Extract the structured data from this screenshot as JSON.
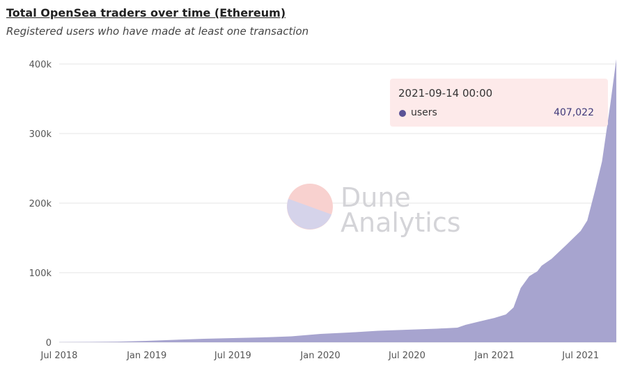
{
  "header": {
    "title": "Total OpenSea traders over time (Ethereum)",
    "subtitle": "Registered users who have made at least one transaction"
  },
  "watermark": {
    "line1": "Dune",
    "line2": "Analytics"
  },
  "tooltip": {
    "date": "2021-09-14 00:00",
    "series_name": "users",
    "value": "407,022",
    "dot_color": "#5a5296"
  },
  "chart_data": {
    "type": "area",
    "title": "Total OpenSea traders over time (Ethereum)",
    "subtitle": "Registered users who have made at least one transaction",
    "xlabel": "",
    "ylabel": "",
    "ylim": [
      0,
      400000
    ],
    "xlim": [
      "2018-07-01",
      "2021-09-14"
    ],
    "grid": true,
    "legend": "none",
    "fill_color": "#a7a4cf",
    "y_ticks": [
      {
        "value": 0,
        "label": "0"
      },
      {
        "value": 100000,
        "label": "100k"
      },
      {
        "value": 200000,
        "label": "200k"
      },
      {
        "value": 300000,
        "label": "300k"
      },
      {
        "value": 400000,
        "label": "400k"
      }
    ],
    "x_ticks": [
      {
        "date": "2018-07-01",
        "label": "Jul 2018"
      },
      {
        "date": "2019-01-01",
        "label": "Jan 2019"
      },
      {
        "date": "2019-07-01",
        "label": "Jul 2019"
      },
      {
        "date": "2020-01-01",
        "label": "Jan 2020"
      },
      {
        "date": "2020-07-01",
        "label": "Jul 2020"
      },
      {
        "date": "2021-01-01",
        "label": "Jan 2021"
      },
      {
        "date": "2021-07-01",
        "label": "Jul 2021"
      }
    ],
    "series": [
      {
        "name": "users",
        "points": [
          [
            "2018-07-01",
            200
          ],
          [
            "2018-09-01",
            500
          ],
          [
            "2018-11-01",
            900
          ],
          [
            "2019-01-01",
            2000
          ],
          [
            "2019-03-01",
            3500
          ],
          [
            "2019-05-01",
            5000
          ],
          [
            "2019-07-01",
            6000
          ],
          [
            "2019-09-01",
            7000
          ],
          [
            "2019-11-01",
            8500
          ],
          [
            "2020-01-01",
            12000
          ],
          [
            "2020-03-01",
            14000
          ],
          [
            "2020-05-01",
            16500
          ],
          [
            "2020-07-01",
            18000
          ],
          [
            "2020-09-01",
            19500
          ],
          [
            "2020-10-15",
            21000
          ],
          [
            "2020-11-01",
            25000
          ],
          [
            "2020-12-01",
            30000
          ],
          [
            "2021-01-01",
            35000
          ],
          [
            "2021-01-25",
            40000
          ],
          [
            "2021-02-10",
            50000
          ],
          [
            "2021-02-25",
            78000
          ],
          [
            "2021-03-15",
            95000
          ],
          [
            "2021-04-01",
            102000
          ],
          [
            "2021-04-10",
            110000
          ],
          [
            "2021-05-01",
            120000
          ],
          [
            "2021-06-01",
            140000
          ],
          [
            "2021-07-01",
            160000
          ],
          [
            "2021-07-15",
            175000
          ],
          [
            "2021-08-01",
            220000
          ],
          [
            "2021-08-15",
            260000
          ],
          [
            "2021-09-01",
            340000
          ],
          [
            "2021-09-14",
            407022
          ]
        ]
      }
    ]
  }
}
